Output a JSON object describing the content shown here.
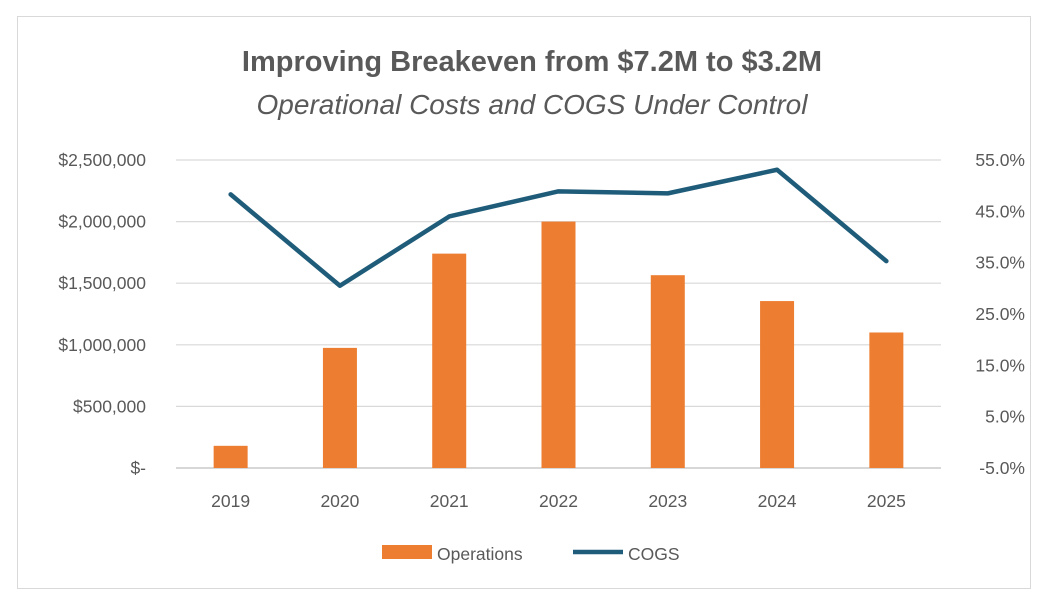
{
  "chart_data": {
    "type": "bar",
    "title": "Improving Breakeven from $7.2M to $3.2M",
    "subtitle": "Operational Costs and COGS Under Control",
    "categories": [
      "2019",
      "2020",
      "2021",
      "2022",
      "2023",
      "2024",
      "2025"
    ],
    "series": [
      {
        "name": "Operations",
        "type": "bar",
        "axis": "left",
        "color": "#ED7D31",
        "values": [
          180000,
          975000,
          1740000,
          2000000,
          1565000,
          1355000,
          1100000
        ]
      },
      {
        "name": "COGS",
        "type": "line",
        "axis": "right",
        "color": "#1F5C7A",
        "values": [
          48.3,
          30.5,
          44.0,
          48.9,
          48.5,
          53.1,
          35.3
        ]
      }
    ],
    "y_left": {
      "range": [
        0,
        2500000
      ],
      "ticks": [
        0,
        500000,
        1000000,
        1500000,
        2000000,
        2500000
      ],
      "tick_labels": [
        "$-",
        "$500,000",
        "$1,000,000",
        "$1,500,000",
        "$2,000,000",
        "$2,500,000"
      ]
    },
    "y_right": {
      "range": [
        -5,
        55
      ],
      "ticks": [
        -5,
        5,
        15,
        25,
        35,
        45,
        55
      ],
      "tick_labels": [
        "-5.0%",
        "5.0%",
        "15.0%",
        "25.0%",
        "35.0%",
        "45.0%",
        "55.0%"
      ]
    },
    "grid": true,
    "legend_position": "bottom"
  }
}
